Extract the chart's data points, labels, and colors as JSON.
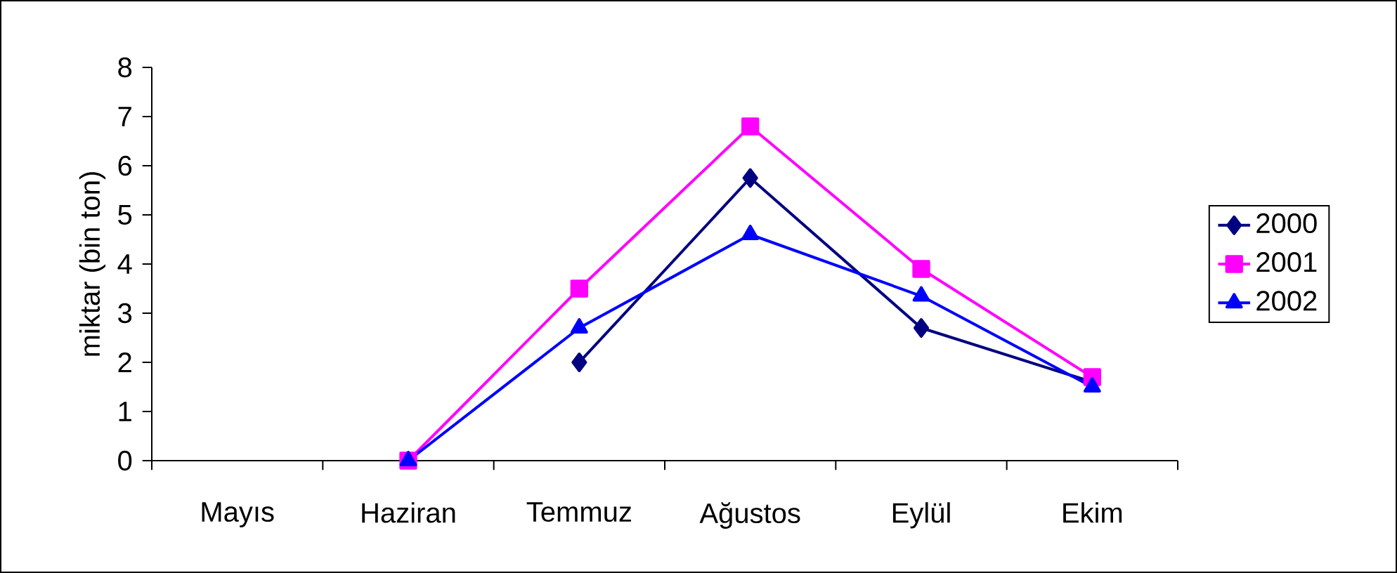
{
  "chart_data": {
    "type": "line",
    "ylabel": "miktar (bin ton)",
    "categories": [
      "Mayıs",
      "Haziran",
      "Temmuz",
      "Ağustos",
      "Eylül",
      "Ekim"
    ],
    "ylim": [
      0,
      8
    ],
    "yticks": [
      0,
      1,
      2,
      3,
      4,
      5,
      6,
      7,
      8
    ],
    "grid": false,
    "legend": "right",
    "series": [
      {
        "name": "2000",
        "color": "#000080",
        "marker": "diamond",
        "values": [
          null,
          null,
          2.0,
          5.75,
          2.7,
          1.6
        ]
      },
      {
        "name": "2001",
        "color": "#ff00ff",
        "marker": "square",
        "values": [
          null,
          0,
          3.5,
          6.8,
          3.9,
          1.7
        ]
      },
      {
        "name": "2002",
        "color": "#0000ff",
        "marker": "triangle",
        "values": [
          null,
          0,
          2.7,
          4.6,
          3.35,
          1.5
        ]
      }
    ]
  }
}
